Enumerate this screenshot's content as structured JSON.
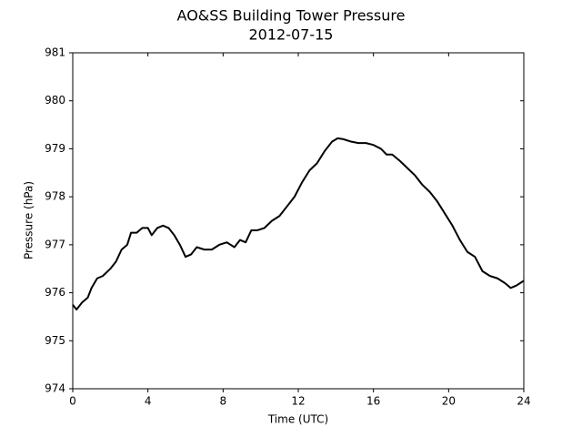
{
  "chart_data": {
    "type": "line",
    "title": "AO&SS Building Tower Pressure",
    "subtitle": "2012-07-15",
    "x_label": "Time (UTC)",
    "y_label": "Pressure (hPa)",
    "x": [
      0,
      0.2,
      0.5,
      0.8,
      1.0,
      1.3,
      1.6,
      2.0,
      2.3,
      2.6,
      2.9,
      3.1,
      3.4,
      3.7,
      4.0,
      4.2,
      4.5,
      4.8,
      5.1,
      5.4,
      5.7,
      6.0,
      6.3,
      6.6,
      7.0,
      7.4,
      7.8,
      8.2,
      8.6,
      8.9,
      9.2,
      9.5,
      9.8,
      10.2,
      10.6,
      11.0,
      11.4,
      11.8,
      12.2,
      12.6,
      13.0,
      13.4,
      13.8,
      14.1,
      14.4,
      14.8,
      15.2,
      15.6,
      16.0,
      16.4,
      16.7,
      17.0,
      17.4,
      17.8,
      18.2,
      18.6,
      19.0,
      19.4,
      19.8,
      20.2,
      20.6,
      21.0,
      21.4,
      21.8,
      22.2,
      22.6,
      23.0,
      23.3,
      23.6,
      24.0
    ],
    "series": [
      {
        "name": "Pressure",
        "color": "#000000",
        "values": [
          975.75,
          975.65,
          975.8,
          975.9,
          976.1,
          976.3,
          976.35,
          976.5,
          976.65,
          976.9,
          977.0,
          977.25,
          977.25,
          977.35,
          977.35,
          977.2,
          977.35,
          977.4,
          977.35,
          977.2,
          977.0,
          976.75,
          976.8,
          976.95,
          976.9,
          976.9,
          977.0,
          977.05,
          976.95,
          977.1,
          977.05,
          977.3,
          977.3,
          977.35,
          977.5,
          977.6,
          977.8,
          978.0,
          978.3,
          978.55,
          978.7,
          978.95,
          979.15,
          979.22,
          979.2,
          979.15,
          979.12,
          979.12,
          979.08,
          979.0,
          978.88,
          978.88,
          978.75,
          978.6,
          978.45,
          978.25,
          978.1,
          977.9,
          977.65,
          977.4,
          977.1,
          976.85,
          976.75,
          976.45,
          976.35,
          976.3,
          976.2,
          976.1,
          976.15,
          976.25
        ]
      }
    ],
    "xlim": [
      0,
      24
    ],
    "xticks": [
      0,
      4,
      8,
      12,
      16,
      20,
      24
    ],
    "ylim": [
      974,
      981
    ],
    "yticks": [
      974,
      975,
      976,
      977,
      978,
      979,
      980,
      981
    ],
    "grid": false
  }
}
